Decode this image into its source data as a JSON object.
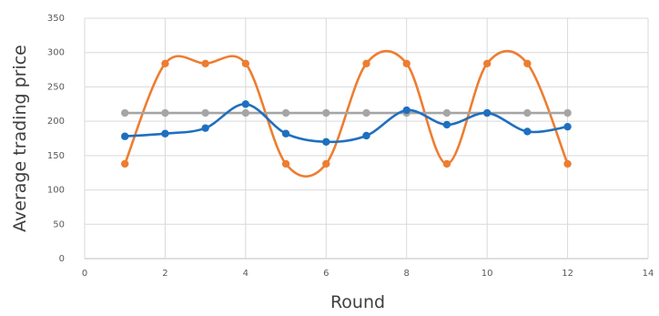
{
  "chart_data": {
    "type": "scatter",
    "xlabel": "Round",
    "ylabel": "Average trading price",
    "xlim": [
      0,
      14
    ],
    "ylim": [
      0,
      350
    ],
    "xticks": [
      0,
      2,
      4,
      6,
      8,
      10,
      12,
      14
    ],
    "yticks": [
      0,
      50,
      100,
      150,
      200,
      250,
      300,
      350
    ],
    "grid": true,
    "smooth_lines": true,
    "legend": "none",
    "series": [
      {
        "color": "#ED7D31",
        "x": [
          1,
          2,
          3,
          4,
          5,
          6,
          7,
          8,
          9,
          10,
          11,
          12
        ],
        "y": [
          138,
          284,
          284,
          284,
          138,
          138,
          284,
          284,
          138,
          284,
          284,
          138
        ]
      },
      {
        "color": "#A5A5A5",
        "x": [
          1,
          2,
          3,
          4,
          5,
          6,
          7,
          8,
          9,
          10,
          11,
          12
        ],
        "y": [
          212,
          212,
          212,
          212,
          212,
          212,
          212,
          212,
          212,
          212,
          212,
          212
        ]
      },
      {
        "color": "#1F6FBF",
        "x": [
          1,
          2,
          3,
          4,
          5,
          6,
          7,
          8,
          9,
          10,
          11,
          12
        ],
        "y": [
          178,
          182,
          190,
          225,
          182,
          170,
          179,
          216,
          195,
          212,
          185,
          192
        ]
      }
    ]
  }
}
